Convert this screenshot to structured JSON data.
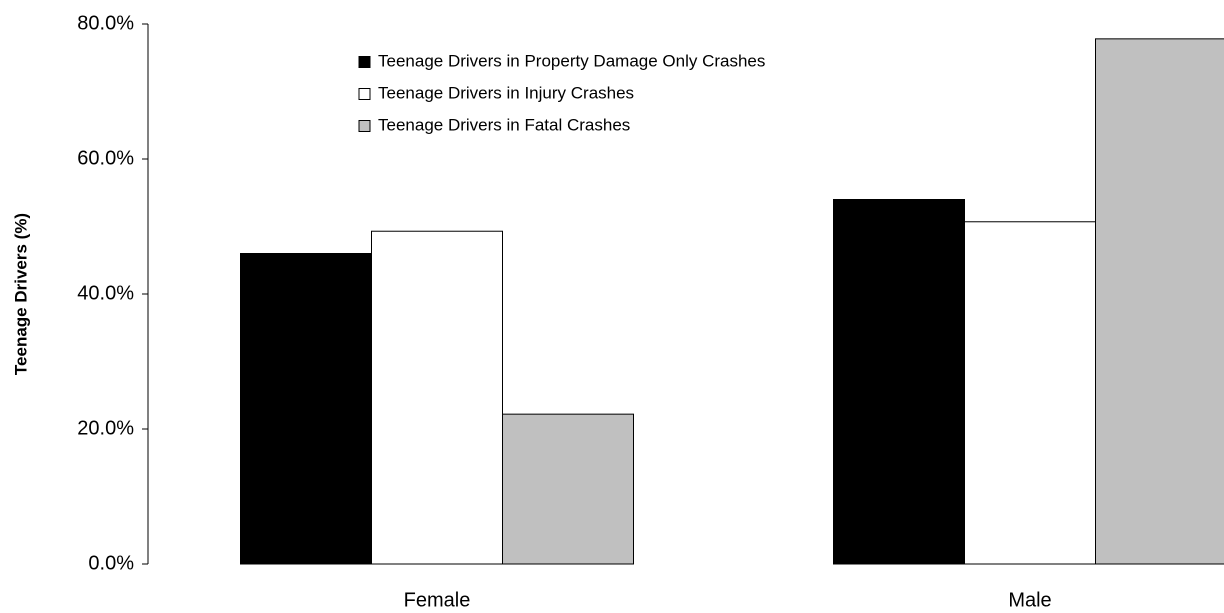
{
  "chart_data": {
    "type": "bar",
    "categories": [
      "Female",
      "Male"
    ],
    "series": [
      {
        "name": "Teenage Drivers in Property Damage Only Crashes",
        "color": "#000000",
        "values": [
          46.0,
          54.0
        ]
      },
      {
        "name": "Teenage Drivers in Injury Crashes",
        "color": "#ffffff",
        "values": [
          49.3,
          50.7
        ]
      },
      {
        "name": "Teenage Drivers in Fatal Crashes",
        "color": "#c0c0c0",
        "values": [
          22.2,
          77.8
        ]
      }
    ],
    "ylabel": "Teenage Drivers (%)",
    "ylim": [
      0,
      80
    ],
    "yticks": [
      {
        "value": 0,
        "label": "0.0%"
      },
      {
        "value": 20,
        "label": "20.0%"
      },
      {
        "value": 40,
        "label": "40.0%"
      },
      {
        "value": 60,
        "label": "60.0%"
      },
      {
        "value": 80,
        "label": "80.0%"
      }
    ],
    "grid": false,
    "legend": "top"
  }
}
